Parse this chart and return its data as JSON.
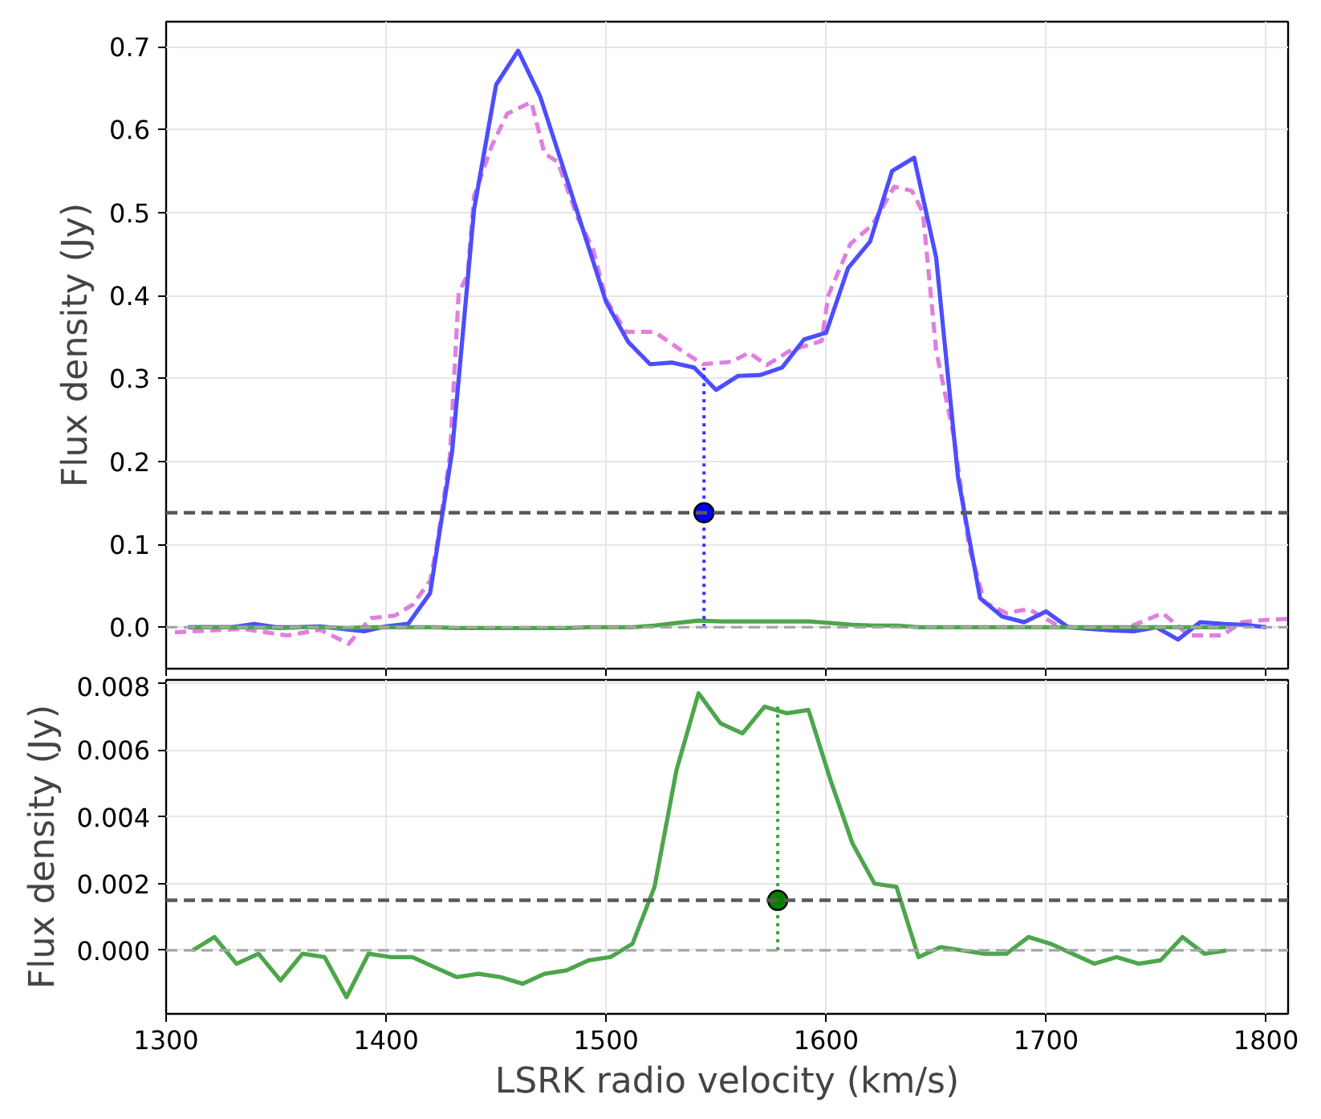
{
  "chart_data": [
    {
      "type": "line",
      "ylabel": "Flux density (Jy)",
      "xlim": [
        1300,
        1810
      ],
      "ylim": [
        -0.05,
        0.73
      ],
      "xticks": [
        1300,
        1400,
        1500,
        1600,
        1700,
        1800
      ],
      "yticks": [
        {
          "value": 0,
          "label": "0.0"
        },
        0.1,
        0.2,
        0.3,
        0.4,
        0.5,
        0.6,
        0.7
      ],
      "grid": true,
      "tick_labels": "y",
      "series": [
        {
          "color": "#e07fe0",
          "line_style": "dashed",
          "x": [
            1304,
            1335,
            1355,
            1370,
            1383,
            1393,
            1404,
            1412,
            1420,
            1423,
            1429,
            1433,
            1437,
            1440,
            1448,
            1455,
            1466,
            1472,
            1478,
            1487,
            1494,
            1500,
            1509,
            1522,
            1534,
            1544,
            1557,
            1565,
            1573,
            1584,
            1598,
            1601,
            1611,
            1621,
            1631,
            1639,
            1644,
            1650,
            1658,
            1665,
            1672,
            1682,
            1692,
            1706,
            1734,
            1753,
            1765,
            1780,
            1789,
            1801,
            1810
          ],
          "values": [
            -0.006,
            -0.002,
            -0.01,
            -0.003,
            -0.02,
            0.011,
            0.014,
            0.027,
            0.056,
            0.097,
            0.206,
            0.404,
            0.424,
            0.52,
            0.58,
            0.619,
            0.633,
            0.571,
            0.561,
            0.494,
            0.456,
            0.395,
            0.356,
            0.356,
            0.334,
            0.317,
            0.32,
            0.331,
            0.316,
            0.334,
            0.345,
            0.4,
            0.462,
            0.485,
            0.531,
            0.526,
            0.5,
            0.334,
            0.231,
            0.097,
            0.03,
            0.017,
            0.022,
            0.001,
            -0.004,
            0.017,
            -0.01,
            -0.01,
            0.006,
            0.009,
            0.01
          ]
        },
        {
          "color": "#4d4dff",
          "line_style": "solid",
          "x": [
            1310,
            1320,
            1330,
            1340,
            1350,
            1360,
            1370,
            1380,
            1390,
            1400,
            1410,
            1420,
            1430,
            1440,
            1450,
            1460,
            1470,
            1480,
            1490,
            1500,
            1510,
            1520,
            1530,
            1540,
            1550,
            1560,
            1570,
            1580,
            1590,
            1600,
            1610,
            1620,
            1630,
            1640,
            1650,
            1660,
            1670,
            1680,
            1690,
            1700,
            1710,
            1720,
            1730,
            1740,
            1750,
            1760,
            1770,
            1780,
            1790,
            1800
          ],
          "values": [
            0,
            0,
            0,
            0.004,
            0,
            0,
            0.001,
            -0.002,
            -0.005,
            0.001,
            0.004,
            0.041,
            0.212,
            0.504,
            0.654,
            0.695,
            0.64,
            0.558,
            0.475,
            0.392,
            0.344,
            0.317,
            0.319,
            0.313,
            0.286,
            0.303,
            0.304,
            0.313,
            0.347,
            0.355,
            0.433,
            0.465,
            0.55,
            0.566,
            0.446,
            0.18,
            0.035,
            0.013,
            0.006,
            0.019,
            0,
            -0.002,
            -0.004,
            -0.005,
            0,
            -0.015,
            0.006,
            0.004,
            0.003,
            0
          ]
        },
        {
          "color": "#4ca64c",
          "line_style": "solid",
          "x": [
            1312,
            1322,
            1332,
            1342,
            1352,
            1362,
            1372,
            1382,
            1392,
            1402,
            1412,
            1422,
            1432,
            1442,
            1452,
            1462,
            1472,
            1482,
            1492,
            1502,
            1512,
            1522,
            1532,
            1542,
            1552,
            1562,
            1572,
            1582,
            1592,
            1602,
            1612,
            1622,
            1632,
            1642,
            1652,
            1662,
            1672,
            1682,
            1692,
            1702,
            1712,
            1722,
            1732,
            1742,
            1752,
            1762,
            1772,
            1782
          ],
          "values": [
            0,
            0,
            0,
            0,
            -0.001,
            0,
            0,
            -0.001,
            0,
            0,
            0,
            0,
            -0.001,
            -0.001,
            -0.001,
            -0.001,
            -0.001,
            -0.001,
            0,
            0,
            0,
            0.002,
            0.005,
            0.008,
            0.007,
            0.007,
            0.007,
            0.007,
            0.007,
            0.005,
            0.003,
            0.002,
            0.002,
            0,
            0,
            0,
            0,
            0,
            0,
            0,
            0,
            0,
            0,
            0,
            0,
            0,
            0,
            0
          ]
        },
        {
          "color": "#3333ff",
          "line_style": "dotted",
          "x": [
            1544.5,
            1544.5
          ],
          "values": [
            0,
            0.313
          ]
        },
        {
          "type": "scatter",
          "color": "#0000ff",
          "marker": "circle",
          "x": [
            1544.5
          ],
          "values": [
            0.138
          ]
        }
      ],
      "ref_lines": [
        {
          "axis": "y",
          "value": 0,
          "color": "#a6a6a6",
          "line_style": "dashed"
        },
        {
          "axis": "y",
          "value": 0.138,
          "color": "#595959",
          "line_style": "dashed"
        }
      ]
    },
    {
      "type": "line",
      "xlabel": "LSRK radio velocity (km/s)",
      "ylabel": "Flux density (Jy)",
      "xlim": [
        1300,
        1810
      ],
      "ylim": [
        -0.0019,
        0.0081
      ],
      "xticks": [
        1300,
        1400,
        1500,
        1600,
        1700,
        1800
      ],
      "yticks": [
        {
          "value": 0,
          "label": "0.000"
        },
        0.002,
        0.004,
        0.006,
        0.008
      ],
      "grid": true,
      "series": [
        {
          "color": "#4ca64c",
          "line_style": "solid",
          "x": [
            1312,
            1322,
            1332,
            1342,
            1352,
            1362,
            1372,
            1382,
            1392,
            1402,
            1412,
            1422,
            1432,
            1442,
            1452,
            1462,
            1472,
            1482,
            1492,
            1502,
            1512,
            1522,
            1532,
            1542,
            1552,
            1562,
            1572,
            1582,
            1592,
            1602,
            1612,
            1622,
            1632,
            1642,
            1652,
            1662,
            1672,
            1682,
            1692,
            1702,
            1712,
            1722,
            1732,
            1742,
            1752,
            1762,
            1772,
            1782
          ],
          "values": [
            0,
            0.0004,
            -0.0004,
            -0.0001,
            -0.0009,
            -0.0001,
            -0.0002,
            -0.0014,
            -0.0001,
            -0.0002,
            -0.0002,
            -0.0005,
            -0.0008,
            -0.0007,
            -0.0008,
            -0.001,
            -0.0007,
            -0.0006,
            -0.0003,
            -0.0002,
            0.0002,
            0.0019,
            0.0054,
            0.0077,
            0.0068,
            0.0065,
            0.0073,
            0.0071,
            0.0072,
            0.0051,
            0.0032,
            0.002,
            0.0019,
            -0.0002,
            0.0001,
            0,
            -0.0001,
            -0.0001,
            0.0004,
            0.0002,
            -0.0001,
            -0.0004,
            -0.0002,
            -0.0004,
            -0.0003,
            0.0004,
            -0.0001,
            0
          ]
        },
        {
          "color": "#3fa63f",
          "line_style": "dotted",
          "x": [
            1578,
            1578
          ],
          "values": [
            0,
            0.0073
          ]
        },
        {
          "type": "scatter",
          "color": "#008000",
          "marker": "circle",
          "x": [
            1578
          ],
          "values": [
            0.0015
          ]
        }
      ],
      "ref_lines": [
        {
          "axis": "y",
          "value": 0,
          "color": "#a6a6a6",
          "line_style": "dashed"
        },
        {
          "axis": "y",
          "value": 0.0015,
          "color": "#595959",
          "line_style": "dashed"
        }
      ]
    }
  ]
}
